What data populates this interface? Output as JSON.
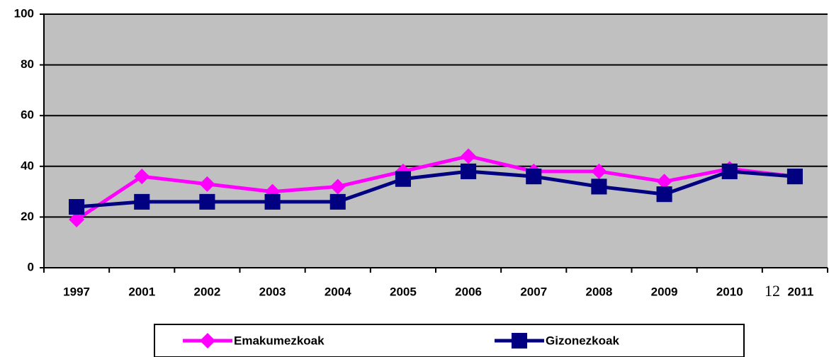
{
  "chart_data": {
    "type": "line",
    "categories": [
      "1997",
      "2001",
      "2002",
      "2003",
      "2004",
      "2005",
      "2006",
      "2007",
      "2008",
      "2009",
      "2010",
      "2011"
    ],
    "series": [
      {
        "name": "Emakumezkoak",
        "color": "#ff00ff",
        "marker": "diamond",
        "values": [
          19,
          36,
          33,
          30,
          32,
          38,
          44,
          38,
          38,
          34,
          39,
          36
        ]
      },
      {
        "name": "Gizonezkoak",
        "color": "#000080",
        "marker": "square",
        "values": [
          24,
          26,
          26,
          26,
          26,
          35,
          38,
          36,
          32,
          29,
          38,
          36
        ]
      }
    ],
    "ylim": [
      0,
      100
    ],
    "yticks": [
      0,
      20,
      40,
      60,
      80,
      100
    ],
    "grid": true,
    "annotation": "12",
    "legend": "bottom"
  }
}
